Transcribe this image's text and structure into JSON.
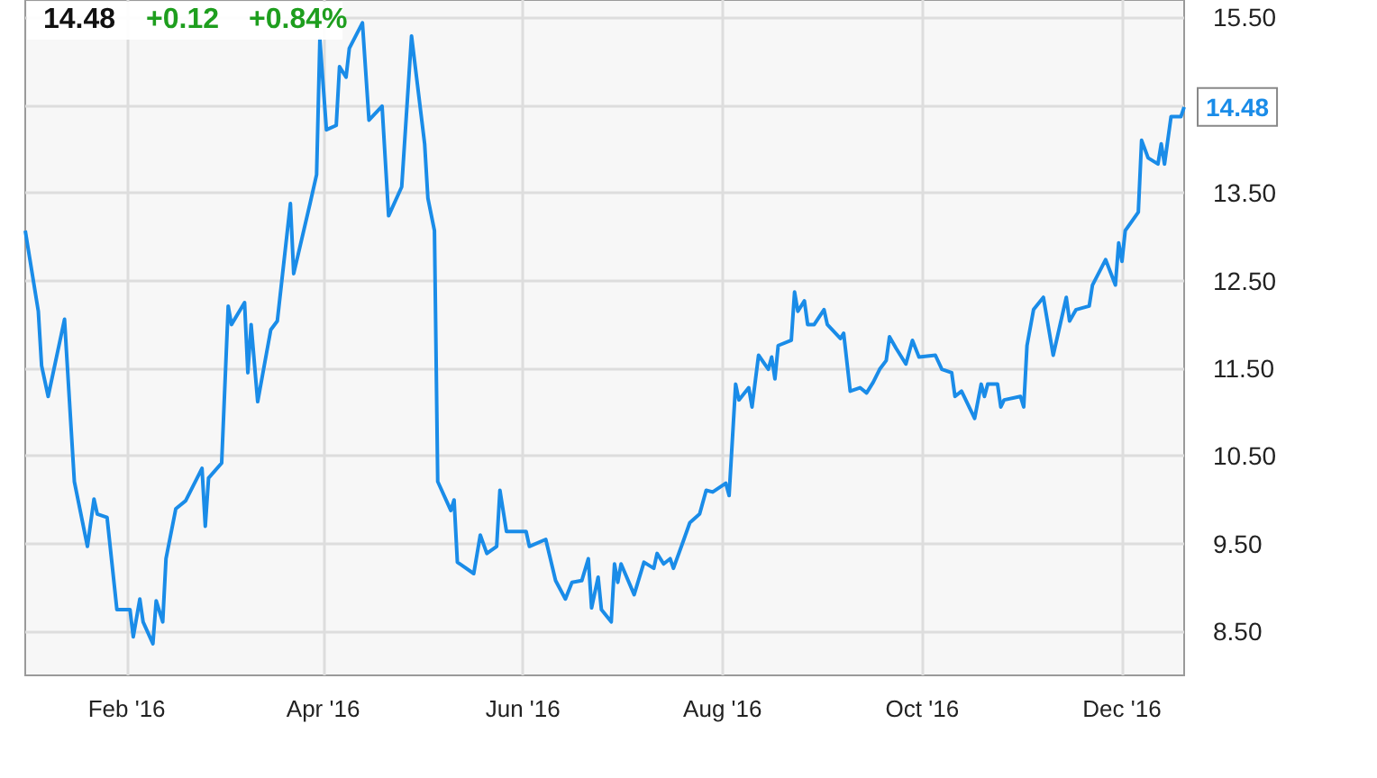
{
  "chart_data": {
    "type": "line",
    "annotations": [
      "14.48",
      "+0.12",
      "+0.84%",
      {
        "text": "14.48",
        "x": "2016-12-20",
        "y": 14.48
      }
    ],
    "x": [
      "2016-01-01",
      "2016-01-05",
      "2016-01-06",
      "2016-01-08",
      "2016-01-13",
      "2016-01-16",
      "2016-01-20",
      "2016-01-22",
      "2016-01-23",
      "2016-01-26",
      "2016-01-29",
      "2016-02-02",
      "2016-02-03",
      "2016-02-05",
      "2016-02-06",
      "2016-02-09",
      "2016-02-10",
      "2016-02-12",
      "2016-02-13",
      "2016-02-16",
      "2016-02-19",
      "2016-02-24",
      "2016-02-25",
      "2016-02-26",
      "2016-03-01",
      "2016-03-03",
      "2016-03-04",
      "2016-03-08",
      "2016-03-09",
      "2016-03-10",
      "2016-03-12",
      "2016-03-16",
      "2016-03-18",
      "2016-03-22",
      "2016-03-23",
      "2016-03-28",
      "2016-03-30",
      "2016-03-31",
      "2016-04-02",
      "2016-04-05",
      "2016-04-06",
      "2016-04-08",
      "2016-04-09",
      "2016-04-13",
      "2016-04-15",
      "2016-04-19",
      "2016-04-21",
      "2016-04-25",
      "2016-04-28",
      "2016-05-02",
      "2016-05-03",
      "2016-05-05",
      "2016-05-06",
      "2016-05-10",
      "2016-05-11",
      "2016-05-12",
      "2016-05-17",
      "2016-05-19",
      "2016-05-21",
      "2016-05-24",
      "2016-05-25",
      "2016-05-27",
      "2016-06-02",
      "2016-06-03",
      "2016-06-08",
      "2016-06-11",
      "2016-06-14",
      "2016-06-16",
      "2016-06-19",
      "2016-06-21",
      "2016-06-22",
      "2016-06-24",
      "2016-06-25",
      "2016-06-28",
      "2016-06-29",
      "2016-06-30",
      "2016-07-01",
      "2016-07-05",
      "2016-07-08",
      "2016-07-11",
      "2016-07-12",
      "2016-07-14",
      "2016-07-16",
      "2016-07-17",
      "2016-07-20",
      "2016-07-22",
      "2016-07-25",
      "2016-07-27",
      "2016-07-29",
      "2016-08-02",
      "2016-08-03",
      "2016-08-05",
      "2016-08-06",
      "2016-08-09",
      "2016-08-10",
      "2016-08-12",
      "2016-08-15",
      "2016-08-16",
      "2016-08-17",
      "2016-08-18",
      "2016-08-22",
      "2016-08-23",
      "2016-08-24",
      "2016-08-26",
      "2016-08-27",
      "2016-08-29",
      "2016-09-01",
      "2016-09-02",
      "2016-09-06",
      "2016-09-07",
      "2016-09-09",
      "2016-09-12",
      "2016-09-14",
      "2016-09-16",
      "2016-09-18",
      "2016-09-20",
      "2016-09-21",
      "2016-09-23",
      "2016-09-26",
      "2016-09-28",
      "2016-09-30",
      "2016-10-05",
      "2016-10-07",
      "2016-10-10",
      "2016-10-11",
      "2016-10-13",
      "2016-10-17",
      "2016-10-19",
      "2016-10-20",
      "2016-10-21",
      "2016-10-24",
      "2016-10-25",
      "2016-10-26",
      "2016-10-31",
      "2016-11-01",
      "2016-11-02",
      "2016-11-04",
      "2016-11-07",
      "2016-11-10",
      "2016-11-14",
      "2016-11-15",
      "2016-11-17",
      "2016-11-21",
      "2016-11-22",
      "2016-11-26",
      "2016-11-29",
      "2016-11-30",
      "2016-12-01",
      "2016-12-02",
      "2016-12-06",
      "2016-12-07",
      "2016-12-09",
      "2016-12-12",
      "2016-12-13",
      "2016-12-14",
      "2016-12-16",
      "2016-12-19",
      "2016-12-20"
    ],
    "series": [
      {
        "color": "#1a8ce8",
        "values": [
          13.07,
          12.15,
          11.53,
          11.18,
          12.06,
          10.21,
          9.47,
          10.01,
          9.84,
          9.8,
          8.75,
          8.75,
          8.44,
          8.87,
          8.61,
          8.36,
          8.85,
          8.61,
          9.33,
          9.9,
          9.99,
          10.36,
          9.7,
          10.25,
          10.42,
          12.21,
          12.0,
          12.25,
          11.45,
          12.0,
          11.12,
          11.94,
          12.04,
          13.38,
          12.58,
          13.38,
          13.71,
          15.25,
          14.22,
          14.27,
          14.94,
          14.82,
          15.15,
          15.44,
          14.33,
          14.49,
          13.24,
          13.57,
          15.29,
          14.06,
          13.44,
          13.07,
          10.21,
          9.88,
          10.0,
          9.29,
          9.16,
          9.6,
          9.39,
          9.47,
          10.11,
          9.64,
          9.64,
          9.47,
          9.55,
          9.08,
          8.87,
          9.06,
          9.08,
          9.33,
          8.77,
          9.12,
          8.75,
          8.61,
          9.27,
          9.06,
          9.27,
          8.92,
          9.29,
          9.22,
          9.39,
          9.27,
          9.33,
          9.22,
          9.53,
          9.74,
          9.84,
          10.11,
          10.09,
          10.19,
          10.05,
          11.32,
          11.14,
          11.28,
          11.06,
          11.65,
          11.49,
          11.63,
          11.38,
          11.76,
          11.82,
          12.37,
          12.15,
          12.27,
          12.0,
          12.0,
          12.17,
          12.0,
          11.84,
          11.9,
          11.24,
          11.28,
          11.22,
          11.34,
          11.49,
          11.59,
          11.86,
          11.73,
          11.55,
          11.82,
          11.63,
          11.65,
          11.49,
          11.45,
          11.18,
          11.24,
          10.93,
          11.32,
          11.18,
          11.32,
          11.32,
          11.06,
          11.14,
          11.18,
          11.06,
          11.76,
          12.17,
          12.31,
          11.65,
          12.31,
          12.04,
          12.17,
          12.21,
          12.45,
          12.74,
          12.45,
          12.93,
          12.72,
          13.07,
          13.28,
          14.1,
          13.9,
          13.83,
          14.06,
          13.83,
          14.37,
          14.37,
          14.48
        ]
      }
    ],
    "xlim": [
      "2016-01-01",
      "2016-12-20"
    ],
    "xticks": [
      {
        "value": "2016-02-01",
        "label": "Feb '16"
      },
      {
        "value": "2016-04-01",
        "label": "Apr '16"
      },
      {
        "value": "2016-06-01",
        "label": "Jun '16"
      },
      {
        "value": "2016-08-01",
        "label": "Aug '16"
      },
      {
        "value": "2016-10-01",
        "label": "Oct '16"
      },
      {
        "value": "2016-12-01",
        "label": "Dec '16"
      }
    ],
    "ylim": [
      8.0,
      15.7
    ],
    "yticks": [
      {
        "value": 8.5,
        "label": "8.50"
      },
      {
        "value": 9.5,
        "label": "9.50"
      },
      {
        "value": 10.5,
        "label": "10.50"
      },
      {
        "value": 11.5,
        "label": "11.50"
      },
      {
        "value": 12.5,
        "label": "12.50"
      },
      {
        "value": 13.5,
        "label": "13.50"
      },
      {
        "value": 14.5,
        "label": null
      },
      {
        "value": 15.5,
        "label": "15.50"
      }
    ],
    "grid": true,
    "marker": "none",
    "line_style": "solid"
  }
}
